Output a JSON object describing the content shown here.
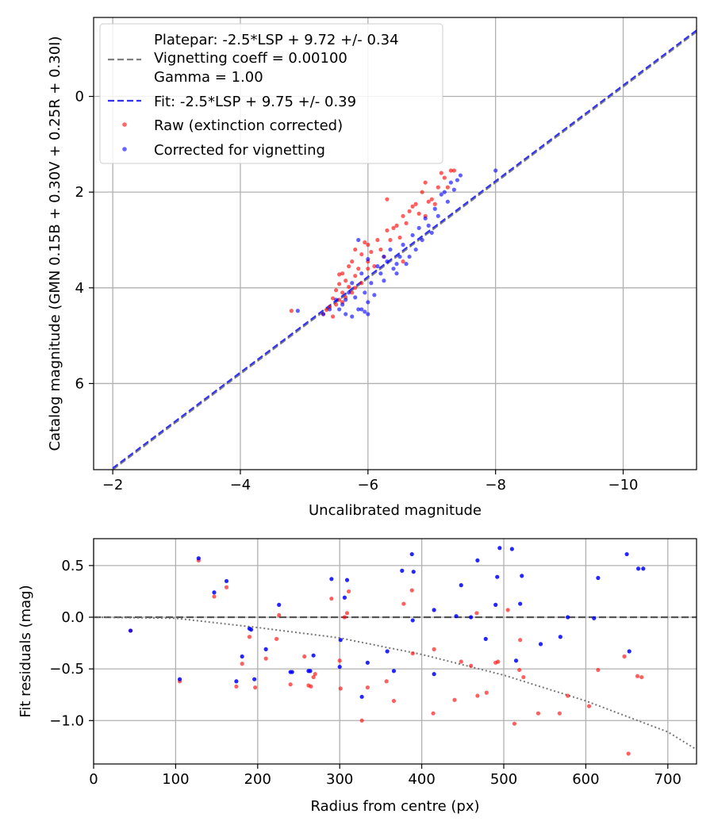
{
  "colors": {
    "raw": "#ff0000",
    "corrected": "#0000ff",
    "platepar_line": "#808080",
    "fit_line": "#3333ee",
    "grid": "#b0b0b0",
    "residual_curve": "#777777",
    "overlap_point": "#800060"
  },
  "chart_data": [
    {
      "type": "scatter",
      "title": "",
      "xlabel": "Uncalibrated magnitude",
      "ylabel": "Catalog magnitude (GMN 0.15B + 0.30V + 0.25R + 0.30I)",
      "xlim": [
        -1.7,
        -11.15
      ],
      "ylim": [
        7.8,
        -1.65
      ],
      "x_ticks": [
        -2,
        -4,
        -6,
        -8,
        -10
      ],
      "x_tick_labels": [
        "−2",
        "−4",
        "−6",
        "−8",
        "−10"
      ],
      "y_ticks": [
        0,
        2,
        4,
        6
      ],
      "y_tick_labels": [
        "0",
        "2",
        "4",
        "6"
      ],
      "grid": true,
      "legend_position": "top-left",
      "legend": [
        {
          "label": "Platepar: -2.5*LSP + 9.72 +/- 0.34",
          "style": "blank"
        },
        {
          "label": "Vignetting coeff = 0.00100",
          "style": "dashed-gray"
        },
        {
          "label": "Gamma = 1.00",
          "style": "blank"
        },
        {
          "label": "Fit: -2.5*LSP + 9.75 +/- 0.39",
          "style": "dashed-blue"
        },
        {
          "label": "Raw (extinction corrected)",
          "style": "red-dot"
        },
        {
          "label": "Corrected for vignetting",
          "style": "blue-dot"
        }
      ],
      "lines": [
        {
          "name": "Platepar",
          "x": [
            -2.0,
            -11.15
          ],
          "y": [
            7.8,
            -1.35
          ]
        },
        {
          "name": "Fit",
          "x": [
            -2.0,
            -11.15
          ],
          "y": [
            7.77,
            -1.38
          ]
        }
      ],
      "series": [
        {
          "name": "Raw (extinction corrected)",
          "x": [
            -4.8,
            -5.3,
            -5.35,
            -5.4,
            -5.45,
            -5.45,
            -5.5,
            -5.5,
            -5.55,
            -5.55,
            -5.6,
            -5.6,
            -5.65,
            -5.65,
            -5.7,
            -5.7,
            -5.75,
            -5.75,
            -5.8,
            -5.8,
            -5.85,
            -5.9,
            -5.9,
            -5.95,
            -6.0,
            -6.0,
            -6.05,
            -6.1,
            -6.15,
            -6.2,
            -6.25,
            -6.3,
            -6.35,
            -6.4,
            -6.45,
            -6.5,
            -6.55,
            -6.6,
            -6.65,
            -6.7,
            -6.75,
            -6.8,
            -6.85,
            -6.9,
            -6.95,
            -7.0,
            -7.05,
            -7.1,
            -7.15,
            -7.2,
            -7.25,
            -7.3,
            -7.35,
            -5.55,
            -5.8,
            -6.0,
            -6.3,
            -6.55,
            -6.9,
            -5.6
          ],
          "y": [
            4.48,
            4.55,
            4.46,
            4.4,
            4.22,
            4.6,
            4.05,
            4.35,
            3.92,
            4.25,
            3.7,
            4.1,
            3.85,
            4.2,
            3.55,
            3.98,
            3.45,
            4.1,
            3.2,
            3.75,
            3.6,
            3.3,
            3.9,
            3.05,
            3.45,
            3.6,
            3.25,
            3.55,
            3.0,
            3.2,
            3.35,
            2.8,
            3.0,
            2.75,
            2.7,
            2.95,
            2.5,
            2.65,
            2.4,
            2.3,
            2.25,
            2.45,
            2.0,
            1.8,
            2.2,
            2.15,
            2.25,
            1.9,
            1.6,
            1.7,
            1.9,
            1.55,
            1.55,
            3.72,
            4.0,
            3.1,
            2.15,
            3.45,
            2.5,
            4.3
          ]
        },
        {
          "name": "Corrected for vignetting",
          "x": [
            -4.9,
            -5.3,
            -5.4,
            -5.5,
            -5.55,
            -5.6,
            -5.65,
            -5.7,
            -5.75,
            -5.75,
            -5.8,
            -5.85,
            -5.9,
            -5.9,
            -5.95,
            -6.0,
            -6.0,
            -6.05,
            -6.1,
            -6.15,
            -6.2,
            -6.25,
            -6.3,
            -6.35,
            -6.4,
            -6.45,
            -6.5,
            -6.55,
            -6.6,
            -6.65,
            -6.7,
            -6.75,
            -6.8,
            -6.85,
            -6.9,
            -6.95,
            -7.0,
            -7.05,
            -7.1,
            -7.15,
            -7.2,
            -7.25,
            -7.3,
            -7.35,
            -7.4,
            -7.45,
            -8.0,
            -5.85,
            -6.0,
            -6.25,
            -6.45,
            -5.65,
            -5.95
          ],
          "y": [
            4.48,
            4.55,
            4.45,
            4.25,
            4.45,
            4.35,
            4.55,
            4.1,
            3.9,
            4.6,
            4.2,
            4.45,
            3.7,
            4.45,
            4.5,
            4.3,
            4.55,
            3.9,
            4.15,
            3.55,
            3.7,
            3.35,
            3.45,
            3.2,
            3.6,
            3.7,
            3.35,
            3.1,
            3.5,
            3.35,
            2.9,
            3.2,
            2.75,
            3.0,
            2.55,
            2.7,
            2.85,
            2.35,
            2.5,
            2.05,
            2.0,
            2.2,
            1.8,
            1.95,
            1.75,
            1.65,
            1.55,
            3.0,
            3.4,
            3.85,
            3.5,
            4.25,
            4.1
          ]
        }
      ]
    },
    {
      "type": "scatter",
      "title": "",
      "xlabel": "Radius from centre (px)",
      "ylabel": "Fit residuals (mag)",
      "xlim": [
        0,
        735
      ],
      "ylim": [
        -1.42,
        0.76
      ],
      "x_ticks": [
        0,
        100,
        200,
        300,
        400,
        500,
        600,
        700
      ],
      "x_tick_labels": [
        "0",
        "100",
        "200",
        "300",
        "400",
        "500",
        "600",
        "700"
      ],
      "y_ticks": [
        0.5,
        0.0,
        -0.5,
        -1.0
      ],
      "y_tick_labels": [
        "0.5",
        "0.0",
        "−0.5",
        "−1.0"
      ],
      "grid": true,
      "lines": [
        {
          "name": "zero",
          "x": [
            0,
            735
          ],
          "y": [
            0,
            0
          ]
        },
        {
          "name": "vignetting",
          "x": [
            0,
            100,
            200,
            300,
            400,
            500,
            600,
            700,
            735
          ],
          "y": [
            0.0,
            -0.01,
            -0.1,
            -0.2,
            -0.36,
            -0.56,
            -0.81,
            -1.11,
            -1.28
          ]
        }
      ],
      "series": [
        {
          "name": "Raw (extinction corrected)",
          "x": [
            45,
            105,
            128,
            147,
            162,
            174,
            181,
            190,
            197,
            210,
            223,
            226,
            240,
            257,
            262,
            265,
            268,
            270,
            290,
            300,
            301,
            306,
            309,
            311,
            327,
            334,
            357,
            366,
            378,
            388,
            389,
            414,
            415,
            440,
            448,
            460,
            467,
            468,
            479,
            490,
            493,
            505,
            513,
            519,
            520,
            524,
            542,
            568,
            578,
            604,
            615,
            647,
            652,
            663,
            668
          ],
          "y": [
            -0.13,
            -0.62,
            0.55,
            0.2,
            0.29,
            -0.67,
            -0.45,
            -0.19,
            -0.68,
            -0.4,
            -0.21,
            0.02,
            -0.65,
            -0.38,
            -0.66,
            -0.67,
            -0.58,
            -0.55,
            0.18,
            -0.42,
            -0.69,
            0.0,
            0.04,
            0.25,
            -1.0,
            -0.68,
            -0.62,
            -0.81,
            0.13,
            0.26,
            -0.35,
            -0.93,
            -0.31,
            -0.8,
            -0.43,
            -0.47,
            0.04,
            -0.76,
            -0.73,
            -0.44,
            -0.43,
            0.07,
            -1.03,
            -0.51,
            -0.22,
            -0.58,
            -0.93,
            -0.93,
            -0.76,
            -0.86,
            -0.51,
            -0.38,
            -1.32,
            -0.57,
            -0.58
          ]
        },
        {
          "name": "Corrected for vignetting",
          "x": [
            45,
            105,
            128,
            147,
            162,
            174,
            181,
            190,
            196,
            210,
            226,
            240,
            262,
            268,
            290,
            301,
            306,
            309,
            327,
            334,
            358,
            366,
            376,
            388,
            390,
            415,
            442,
            448,
            460,
            468,
            478,
            490,
            492,
            495,
            510,
            515,
            520,
            522,
            545,
            569,
            578,
            610,
            615,
            650,
            653,
            664,
            670,
            389,
            415,
            300,
            264,
            192,
            242
          ],
          "y": [
            -0.13,
            -0.6,
            0.57,
            0.24,
            0.35,
            -0.62,
            -0.38,
            -0.11,
            -0.6,
            -0.31,
            0.12,
            -0.53,
            -0.52,
            -0.37,
            0.37,
            -0.22,
            0.19,
            0.36,
            -0.77,
            -0.44,
            -0.33,
            -0.52,
            0.45,
            0.61,
            0.44,
            0.07,
            0.01,
            0.31,
            0.0,
            0.55,
            -0.21,
            0.12,
            0.39,
            0.67,
            0.66,
            -0.42,
            0.13,
            0.4,
            -0.26,
            -0.19,
            0.0,
            -0.01,
            0.38,
            0.61,
            -0.33,
            0.47,
            0.47,
            -0.03,
            -0.55,
            -0.48,
            -0.52,
            -0.12,
            -0.53
          ]
        }
      ]
    }
  ]
}
